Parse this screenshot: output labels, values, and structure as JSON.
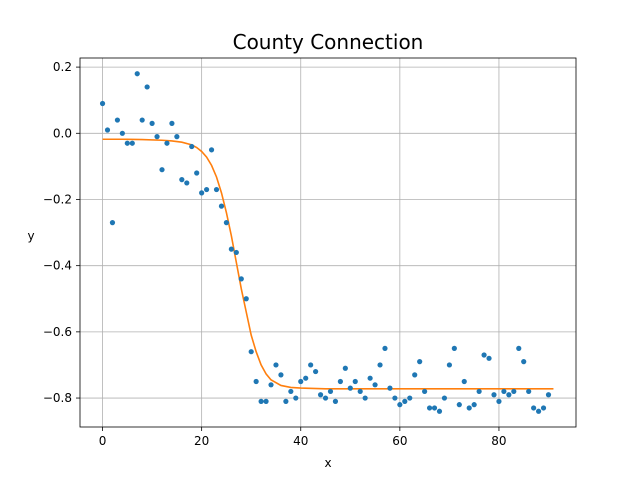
{
  "chart_data": {
    "type": "scatter",
    "title": "County Connection",
    "xlabel": "x",
    "ylabel": "y",
    "xlim": [
      -4.55,
      95.55
    ],
    "ylim": [
      -0.8875,
      0.2275
    ],
    "xticks": [
      0,
      20,
      40,
      60,
      80
    ],
    "yticks": [
      0.2,
      0.0,
      -0.2,
      -0.4,
      -0.6,
      -0.8
    ],
    "xtick_labels": [
      "0",
      "20",
      "40",
      "60",
      "80"
    ],
    "ytick_labels": [
      "0.2",
      "0.0",
      "−0.2",
      "−0.4",
      "−0.6",
      "−0.8"
    ],
    "grid": true,
    "series": [
      {
        "kind": "points",
        "color": "#1f77b4",
        "x": [
          0,
          1,
          2,
          3,
          4,
          5,
          6,
          7,
          8,
          9,
          10,
          11,
          12,
          13,
          14,
          15,
          16,
          17,
          18,
          19,
          20,
          21,
          22,
          23,
          24,
          25,
          26,
          27,
          28,
          29,
          30,
          31,
          32,
          33,
          34,
          35,
          36,
          37,
          38,
          39,
          40,
          41,
          42,
          43,
          44,
          45,
          46,
          47,
          48,
          49,
          50,
          51,
          52,
          53,
          54,
          55,
          56,
          57,
          58,
          59,
          60,
          61,
          62,
          63,
          64,
          65,
          66,
          67,
          68,
          69,
          70,
          71,
          72,
          73,
          74,
          75,
          76,
          77,
          78,
          79,
          80,
          81,
          82,
          83,
          84,
          85,
          86,
          87,
          88,
          89,
          90
        ],
        "y": [
          0.09,
          0.01,
          -0.27,
          0.04,
          0.0,
          -0.03,
          -0.03,
          0.18,
          0.04,
          0.14,
          0.03,
          -0.01,
          -0.11,
          -0.03,
          0.03,
          -0.01,
          -0.14,
          -0.15,
          -0.04,
          -0.12,
          -0.18,
          -0.17,
          -0.05,
          -0.17,
          -0.22,
          -0.27,
          -0.35,
          -0.36,
          -0.44,
          -0.5,
          -0.66,
          -0.75,
          -0.81,
          -0.81,
          -0.76,
          -0.7,
          -0.73,
          -0.81,
          -0.78,
          -0.8,
          -0.75,
          -0.74,
          -0.7,
          -0.72,
          -0.79,
          -0.8,
          -0.78,
          -0.81,
          -0.75,
          -0.71,
          -0.77,
          -0.75,
          -0.78,
          -0.8,
          -0.74,
          -0.76,
          -0.7,
          -0.65,
          -0.77,
          -0.8,
          -0.82,
          -0.81,
          -0.8,
          -0.73,
          -0.69,
          -0.78,
          -0.83,
          -0.83,
          -0.84,
          -0.8,
          -0.7,
          -0.65,
          -0.82,
          -0.75,
          -0.83,
          -0.82,
          -0.78,
          -0.67,
          -0.68,
          -0.79,
          -0.81,
          -0.78,
          -0.79,
          -0.78,
          -0.65,
          -0.69,
          -0.78,
          -0.83,
          -0.84,
          -0.83,
          -0.79
        ]
      },
      {
        "kind": "line",
        "color": "#ff7f0e",
        "x": [
          0,
          4,
          8,
          12,
          14,
          16,
          18,
          19,
          20,
          21,
          22,
          23,
          24,
          25,
          26,
          27,
          28,
          29,
          30,
          31,
          32,
          33,
          34,
          36,
          38,
          40,
          45,
          50,
          60,
          70,
          80,
          91
        ],
        "y": [
          -0.018,
          -0.018,
          -0.019,
          -0.021,
          -0.023,
          -0.027,
          -0.035,
          -0.043,
          -0.055,
          -0.072,
          -0.097,
          -0.132,
          -0.18,
          -0.24,
          -0.31,
          -0.39,
          -0.47,
          -0.54,
          -0.61,
          -0.66,
          -0.7,
          -0.727,
          -0.745,
          -0.762,
          -0.768,
          -0.77,
          -0.772,
          -0.772,
          -0.772,
          -0.772,
          -0.772,
          -0.772
        ]
      }
    ]
  }
}
